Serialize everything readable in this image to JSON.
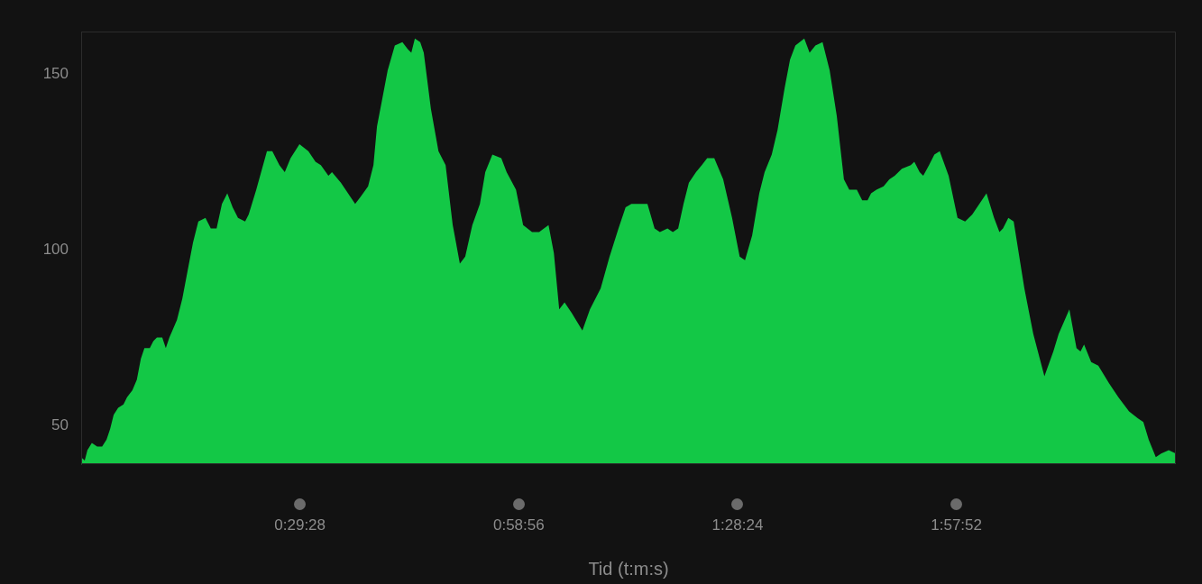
{
  "chart_data": {
    "type": "area",
    "xlabel": "Tid (t:m:s)",
    "x": [
      0,
      0.008,
      0.014,
      0.024,
      0.036,
      0.047,
      0.057,
      0.065,
      0.073,
      0.083,
      0.095,
      0.103,
      0.115,
      0.125,
      0.134,
      0.142,
      0.154,
      0.162,
      0.17,
      0.182,
      0.19,
      0.198,
      0.215,
      0.227,
      0.239,
      0.251,
      0.263,
      0.279,
      0.291,
      0.304,
      0.316,
      0.328,
      0.34,
      0.352,
      0.368,
      0.376,
      0.393,
      0.417,
      0.429,
      0.445,
      0.457,
      0.47,
      0.49,
      0.51,
      0.526,
      0.538,
      0.555,
      0.563,
      0.583,
      0.599,
      0.615,
      0.627,
      0.644,
      0.656,
      0.664,
      0.676,
      0.688,
      0.704,
      0.721,
      0.733,
      0.741,
      0.749,
      0.761,
      0.769,
      0.785,
      0.802,
      0.818,
      0.834,
      0.85,
      0.862,
      0.878,
      0.895,
      0.907,
      0.923,
      0.943,
      0.955,
      0.976,
      0.992,
      1.012,
      1.028,
      1.049,
      1.061,
      1.073,
      1.085,
      1.101,
      1.125,
      1.142,
      1.166,
      1.186,
      1.206,
      1.222,
      1.235,
      1.259,
      1.271,
      1.287,
      1.299,
      1.316,
      1.328,
      1.34,
      1.352,
      1.364,
      1.38,
      1.393,
      1.405,
      1.421,
      1.441,
      1.461,
      1.478,
      1.49,
      1.506,
      1.522,
      1.534,
      1.55,
      1.563,
      1.579,
      1.591,
      1.603,
      1.623,
      1.635,
      1.648,
      1.664,
      1.68,
      1.696,
      1.712,
      1.724,
      1.741,
      1.753,
      1.765,
      1.773,
      1.785,
      1.801,
      1.814,
      1.826,
      1.842,
      1.862,
      1.87,
      1.882,
      1.89,
      1.903,
      1.915,
      1.927,
      1.947,
      1.967,
      1.984,
      2.0,
      2.016,
      2.032,
      2.049,
      2.061,
      2.069,
      2.081,
      2.093,
      2.117,
      2.137,
      2.162,
      2.182,
      2.194,
      2.218,
      2.234,
      2.243,
      2.251,
      2.267,
      2.283,
      2.307,
      2.328,
      2.352,
      2.372,
      2.384,
      2.396,
      2.412,
      2.424,
      2.441,
      2.457
    ],
    "series": [
      {
        "color": "#13c846",
        "values": [
          41,
          40,
          43,
          45,
          44,
          44,
          46,
          49,
          53,
          55,
          56,
          58,
          60,
          63,
          69,
          72,
          72,
          74,
          75,
          75,
          72,
          75,
          80,
          86,
          94,
          102,
          108,
          109,
          106,
          106,
          113,
          116,
          112,
          109,
          108,
          110,
          117,
          128,
          128,
          124,
          122,
          126,
          130,
          128,
          125,
          124,
          121,
          122,
          119,
          116,
          113,
          115,
          118,
          124,
          135,
          143,
          151,
          158,
          159,
          157,
          156,
          160,
          159,
          156,
          140,
          128,
          124,
          107,
          96,
          98,
          107,
          113,
          122,
          127,
          126,
          122,
          117,
          107,
          105,
          105,
          107,
          99,
          83,
          85,
          82,
          77,
          83,
          89,
          98,
          106,
          112,
          113,
          113,
          113,
          106,
          105,
          106,
          105,
          106,
          113,
          119,
          122,
          124,
          126,
          126,
          120,
          109,
          98,
          97,
          104,
          116,
          122,
          127,
          134,
          146,
          154,
          158,
          160,
          156,
          158,
          159,
          151,
          138,
          120,
          117,
          117,
          114,
          114,
          116,
          117,
          118,
          120,
          121,
          123,
          124,
          125,
          122,
          121,
          124,
          127,
          128,
          121,
          109,
          108,
          110,
          113,
          116,
          109,
          105,
          106,
          109,
          108,
          89,
          76,
          64,
          71,
          76,
          83,
          72,
          71,
          73,
          68,
          67,
          62,
          58,
          54,
          52,
          51,
          46,
          41,
          42,
          43,
          42
        ]
      }
    ],
    "xticks": [
      {
        "value": 0.491111,
        "label": "0:29:28"
      },
      {
        "value": 0.982222,
        "label": "0:58:56"
      },
      {
        "value": 1.473333,
        "label": "1:28:24"
      },
      {
        "value": 1.964444,
        "label": "1:57:52"
      }
    ],
    "xlim": [
      0,
      2.457
    ],
    "ylim": [
      39,
      162
    ],
    "yticks": [
      50,
      100,
      150
    ],
    "grid": false,
    "legend": false
  }
}
